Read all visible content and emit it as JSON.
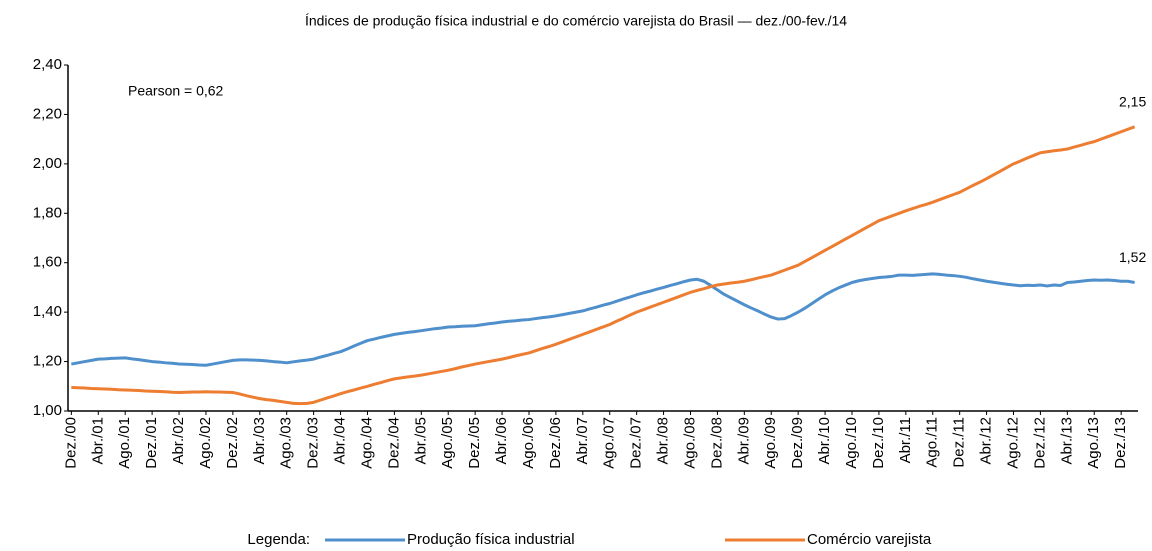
{
  "chart_data": {
    "type": "line",
    "title": "Índices de produção física industrial e do comércio varejista do Brasil — dez./00-fev./14",
    "annotation": "Pearson = 0,62",
    "legend_title": "Legenda:",
    "categories": [
      "Dez./00",
      null,
      null,
      null,
      "Abr./01",
      null,
      null,
      null,
      "Ago./01",
      null,
      null,
      null,
      "Dez./01",
      null,
      null,
      null,
      "Abr./02",
      null,
      null,
      null,
      "Ago./02",
      null,
      null,
      null,
      "Dez./02",
      null,
      null,
      null,
      "Abr./03",
      null,
      null,
      null,
      "Ago./03",
      null,
      null,
      null,
      "Dez./03",
      null,
      null,
      null,
      "Abr./04",
      null,
      null,
      null,
      "Ago./04",
      null,
      null,
      null,
      "Dez./04",
      null,
      null,
      null,
      "Abr./05",
      null,
      null,
      null,
      "Ago./05",
      null,
      null,
      null,
      "Dez./05",
      null,
      null,
      null,
      "Abr./06",
      null,
      null,
      null,
      "Ago./06",
      null,
      null,
      null,
      "Dez./06",
      null,
      null,
      null,
      "Abr./07",
      null,
      null,
      null,
      "Ago./07",
      null,
      null,
      null,
      "Dez./07",
      null,
      null,
      null,
      "Abr./08",
      null,
      null,
      null,
      "Ago./08",
      null,
      null,
      null,
      "Dez./08",
      null,
      null,
      null,
      "Abr./09",
      null,
      null,
      null,
      "Ago./09",
      null,
      null,
      null,
      "Dez./09",
      null,
      null,
      null,
      "Abr./10",
      null,
      null,
      null,
      "Ago./10",
      null,
      null,
      null,
      "Dez./10",
      null,
      null,
      null,
      "Abr./11",
      null,
      null,
      null,
      "Ago./11",
      null,
      null,
      null,
      "Dez./11",
      null,
      null,
      null,
      "Abr./12",
      null,
      null,
      null,
      "Ago./12",
      null,
      null,
      null,
      "Dez./12",
      null,
      null,
      null,
      "Abr./13",
      null,
      null,
      null,
      "Ago./13",
      null,
      null,
      null,
      "Dez./13",
      null,
      null
    ],
    "series": [
      {
        "name": "Produção física industrial",
        "color": "#4f8fcc",
        "end_label": "1,52",
        "values": [
          1.19,
          1.195,
          1.2,
          1.205,
          1.21,
          1.211,
          1.213,
          1.214,
          1.215,
          1.211,
          1.208,
          1.204,
          1.2,
          1.198,
          1.195,
          1.193,
          1.19,
          1.189,
          1.188,
          1.186,
          1.185,
          1.19,
          1.195,
          1.2,
          1.205,
          1.207,
          1.207,
          1.206,
          1.205,
          1.203,
          1.2,
          1.198,
          1.195,
          1.199,
          1.203,
          1.206,
          1.21,
          1.218,
          1.225,
          1.233,
          1.24,
          1.251,
          1.263,
          1.274,
          1.285,
          1.291,
          1.298,
          1.304,
          1.31,
          1.314,
          1.318,
          1.321,
          1.325,
          1.329,
          1.333,
          1.336,
          1.34,
          1.341,
          1.343,
          1.344,
          1.345,
          1.349,
          1.353,
          1.356,
          1.36,
          1.363,
          1.365,
          1.368,
          1.37,
          1.374,
          1.378,
          1.381,
          1.385,
          1.39,
          1.395,
          1.4,
          1.405,
          1.413,
          1.42,
          1.428,
          1.435,
          1.444,
          1.453,
          1.461,
          1.47,
          1.478,
          1.485,
          1.493,
          1.5,
          1.508,
          1.515,
          1.523,
          1.53,
          1.533,
          1.525,
          1.508,
          1.49,
          1.472,
          1.458,
          1.444,
          1.43,
          1.417,
          1.405,
          1.392,
          1.38,
          1.372,
          1.374,
          1.386,
          1.4,
          1.416,
          1.434,
          1.452,
          1.47,
          1.485,
          1.498,
          1.509,
          1.52,
          1.527,
          1.532,
          1.536,
          1.54,
          1.542,
          1.545,
          1.55,
          1.55,
          1.549,
          1.551,
          1.553,
          1.555,
          1.553,
          1.55,
          1.548,
          1.545,
          1.541,
          1.535,
          1.53,
          1.525,
          1.521,
          1.517,
          1.513,
          1.51,
          1.507,
          1.509,
          1.508,
          1.51,
          1.506,
          1.51,
          1.508,
          1.52,
          1.522,
          1.525,
          1.528,
          1.53,
          1.529,
          1.53,
          1.528,
          1.525,
          1.525,
          1.52
        ]
      },
      {
        "name": "Comércio varejista",
        "color": "#ed7d31",
        "end_label": "2,15",
        "values": [
          1.095,
          1.094,
          1.093,
          1.091,
          1.09,
          1.089,
          1.088,
          1.086,
          1.085,
          1.084,
          1.083,
          1.081,
          1.08,
          1.079,
          1.078,
          1.076,
          1.075,
          1.076,
          1.077,
          1.077,
          1.078,
          1.077,
          1.077,
          1.076,
          1.075,
          1.069,
          1.062,
          1.056,
          1.05,
          1.046,
          1.043,
          1.039,
          1.035,
          1.031,
          1.03,
          1.031,
          1.035,
          1.044,
          1.053,
          1.061,
          1.07,
          1.078,
          1.085,
          1.093,
          1.1,
          1.108,
          1.115,
          1.123,
          1.13,
          1.134,
          1.138,
          1.141,
          1.145,
          1.15,
          1.155,
          1.16,
          1.165,
          1.171,
          1.178,
          1.184,
          1.19,
          1.195,
          1.2,
          1.205,
          1.21,
          1.216,
          1.223,
          1.229,
          1.235,
          1.244,
          1.253,
          1.261,
          1.27,
          1.28,
          1.29,
          1.3,
          1.31,
          1.32,
          1.33,
          1.34,
          1.35,
          1.363,
          1.375,
          1.388,
          1.4,
          1.41,
          1.42,
          1.43,
          1.44,
          1.45,
          1.46,
          1.47,
          1.48,
          1.488,
          1.495,
          1.503,
          1.51,
          1.514,
          1.518,
          1.521,
          1.525,
          1.531,
          1.538,
          1.544,
          1.55,
          1.56,
          1.57,
          1.58,
          1.59,
          1.605,
          1.62,
          1.635,
          1.65,
          1.665,
          1.68,
          1.695,
          1.71,
          1.725,
          1.74,
          1.755,
          1.77,
          1.78,
          1.79,
          1.8,
          1.81,
          1.819,
          1.828,
          1.836,
          1.845,
          1.855,
          1.865,
          1.875,
          1.885,
          1.899,
          1.913,
          1.926,
          1.94,
          1.955,
          1.97,
          1.985,
          2.0,
          2.011,
          2.023,
          2.034,
          2.045,
          2.049,
          2.053,
          2.056,
          2.06,
          2.068,
          2.075,
          2.083,
          2.09,
          2.1,
          2.11,
          2.12,
          2.13,
          2.14,
          2.15
        ]
      }
    ],
    "ylim": [
      1.0,
      2.4
    ],
    "yticks": [
      {
        "value": 1.0,
        "label": "1,00"
      },
      {
        "value": 1.2,
        "label": "1,20"
      },
      {
        "value": 1.4,
        "label": "1,40"
      },
      {
        "value": 1.6,
        "label": "1,60"
      },
      {
        "value": 1.8,
        "label": "1,80"
      },
      {
        "value": 2.0,
        "label": "2,00"
      },
      {
        "value": 2.2,
        "label": "2,20"
      },
      {
        "value": 2.4,
        "label": "2,40"
      }
    ],
    "grid": false
  }
}
